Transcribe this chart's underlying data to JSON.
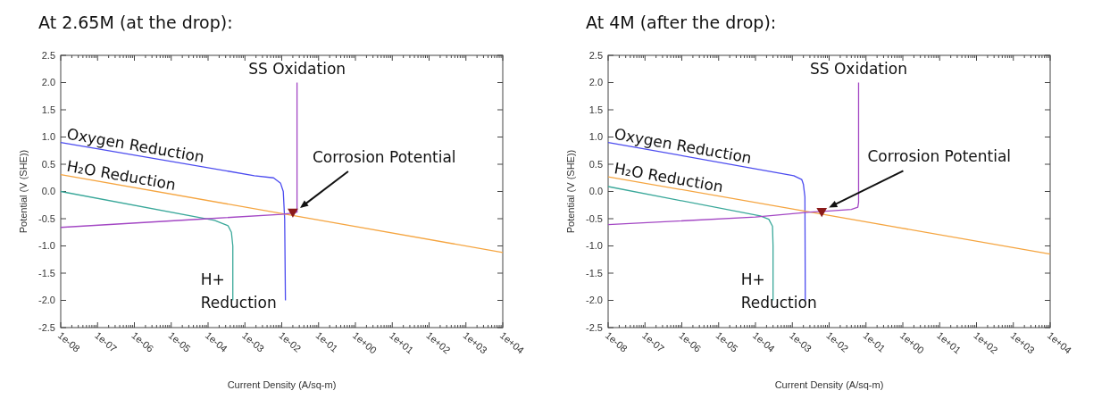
{
  "chart_data": [
    {
      "type": "line",
      "title": "At 2.65M (at the drop):",
      "xlabel": "Current Density (A/sq-m)",
      "ylabel": "Potential (V (SHE))",
      "log": "x",
      "grid": false,
      "xlim": [
        1e-08,
        10000
      ],
      "xticks": [
        {
          "value": 1e-08,
          "label": "1e-08"
        },
        {
          "value": 1e-07,
          "label": "1e-07"
        },
        {
          "value": 1e-06,
          "label": "1e-06"
        },
        {
          "value": 1e-05,
          "label": "1e-05"
        },
        {
          "value": 0.0001,
          "label": "1e-04"
        },
        {
          "value": 0.001,
          "label": "1e-03"
        },
        {
          "value": 0.01,
          "label": "1e-02"
        },
        {
          "value": 0.1,
          "label": "1e-01"
        },
        {
          "value": 1,
          "label": "1e+00"
        },
        {
          "value": 10,
          "label": "1e+01"
        },
        {
          "value": 100,
          "label": "1e+02"
        },
        {
          "value": 1000,
          "label": "1e+03"
        },
        {
          "value": 10000,
          "label": "1e+04"
        }
      ],
      "ylim": [
        -2.5,
        2.5
      ],
      "yticks": [
        2.5,
        {
          "value": 2,
          "label": "2.0"
        },
        1.5,
        {
          "value": 1,
          "label": "1.0"
        },
        0.5,
        {
          "value": 0,
          "label": "0.0"
        },
        -0.5,
        {
          "value": -1,
          "label": "-1.0"
        },
        -1.5,
        {
          "value": -2,
          "label": "-2.0"
        },
        -2.5
      ],
      "series": [
        {
          "name": "Oxygen Reduction",
          "color": "#4b4bef",
          "x": [
            1e-08,
            0.0018,
            0.006,
            0.0093,
            0.011,
            0.012,
            0.0126
          ],
          "values": [
            0.9,
            0.29,
            0.25,
            0.15,
            0.0,
            -0.5,
            -2.0
          ]
        },
        {
          "name": "H₂O Reduction",
          "color": "#f5a540",
          "x": [
            1e-08,
            10000
          ],
          "values": [
            0.31,
            -1.12
          ]
        },
        {
          "name": "H+ Reduction",
          "color": "#3aa89a",
          "x": [
            1e-08,
            0.00015,
            0.00035,
            0.00043,
            0.00047,
            0.00047
          ],
          "values": [
            0.0,
            -0.53,
            -0.63,
            -0.75,
            -1.0,
            -2.0
          ]
        },
        {
          "name": "SS Oxidation",
          "color": "#a347c4",
          "x": [
            1e-08,
            0.0001,
            0.01,
            0.022,
            0.026,
            0.026
          ],
          "values": [
            -0.66,
            -0.5,
            -0.42,
            -0.39,
            -0.38,
            2.0
          ]
        },
        {
          "name": "Corrosion Potential",
          "type": "scatter",
          "marker": "triangle",
          "color": "#8b1a1a",
          "x": [
            0.02
          ],
          "values": [
            -0.37
          ]
        }
      ]
    },
    {
      "type": "line",
      "title": "At 4M (after the drop):",
      "xlabel": "Current Density (A/sq-m)",
      "ylabel": "Potential (V (SHE))",
      "log": "x",
      "grid": false,
      "xlim": [
        1e-08,
        10000
      ],
      "xticks": [
        {
          "value": 1e-08,
          "label": "1e-08"
        },
        {
          "value": 1e-07,
          "label": "1e-07"
        },
        {
          "value": 1e-06,
          "label": "1e-06"
        },
        {
          "value": 1e-05,
          "label": "1e-05"
        },
        {
          "value": 0.0001,
          "label": "1e-04"
        },
        {
          "value": 0.001,
          "label": "1e-03"
        },
        {
          "value": 0.01,
          "label": "1e-02"
        },
        {
          "value": 0.1,
          "label": "1e-01"
        },
        {
          "value": 1,
          "label": "1e+00"
        },
        {
          "value": 10,
          "label": "1e+01"
        },
        {
          "value": 100,
          "label": "1e+02"
        },
        {
          "value": 1000,
          "label": "1e+03"
        },
        {
          "value": 10000,
          "label": "1e+04"
        }
      ],
      "ylim": [
        -2.5,
        2.5
      ],
      "yticks": [
        2.5,
        {
          "value": 2,
          "label": "2.0"
        },
        1.5,
        {
          "value": 1,
          "label": "1.0"
        },
        0.5,
        {
          "value": 0,
          "label": "0.0"
        },
        -0.5,
        {
          "value": -1,
          "label": "-1.0"
        },
        -1.5,
        {
          "value": -2,
          "label": "-2.0"
        },
        -2.5
      ],
      "series": [
        {
          "name": "Oxygen Reduction",
          "color": "#4b4bef",
          "x": [
            1e-08,
            0.0011,
            0.0018,
            0.002,
            0.0022,
            0.00225
          ],
          "values": [
            0.9,
            0.29,
            0.22,
            0.13,
            -0.1,
            -2.0
          ]
        },
        {
          "name": "H₂O Reduction",
          "color": "#f5a540",
          "x": [
            1e-08,
            10000
          ],
          "values": [
            0.27,
            -1.15
          ]
        },
        {
          "name": "H+ Reduction",
          "color": "#3aa89a",
          "x": [
            1e-08,
            0.000135,
            0.00023,
            0.00029,
            0.0003,
            0.0003
          ],
          "values": [
            0.09,
            -0.45,
            -0.51,
            -0.64,
            -1.0,
            -2.0
          ]
        },
        {
          "name": "SS Oxidation",
          "color": "#a347c4",
          "x": [
            1e-08,
            0.0001,
            0.003,
            0.01,
            0.04,
            0.06,
            0.063,
            0.063
          ],
          "values": [
            -0.61,
            -0.47,
            -0.38,
            -0.36,
            -0.33,
            -0.29,
            -0.2,
            2.0
          ]
        },
        {
          "name": "Corrosion Potential",
          "type": "scatter",
          "marker": "triangle",
          "color": "#8b1a1a",
          "x": [
            0.0063
          ],
          "values": [
            -0.36
          ]
        }
      ]
    }
  ]
}
